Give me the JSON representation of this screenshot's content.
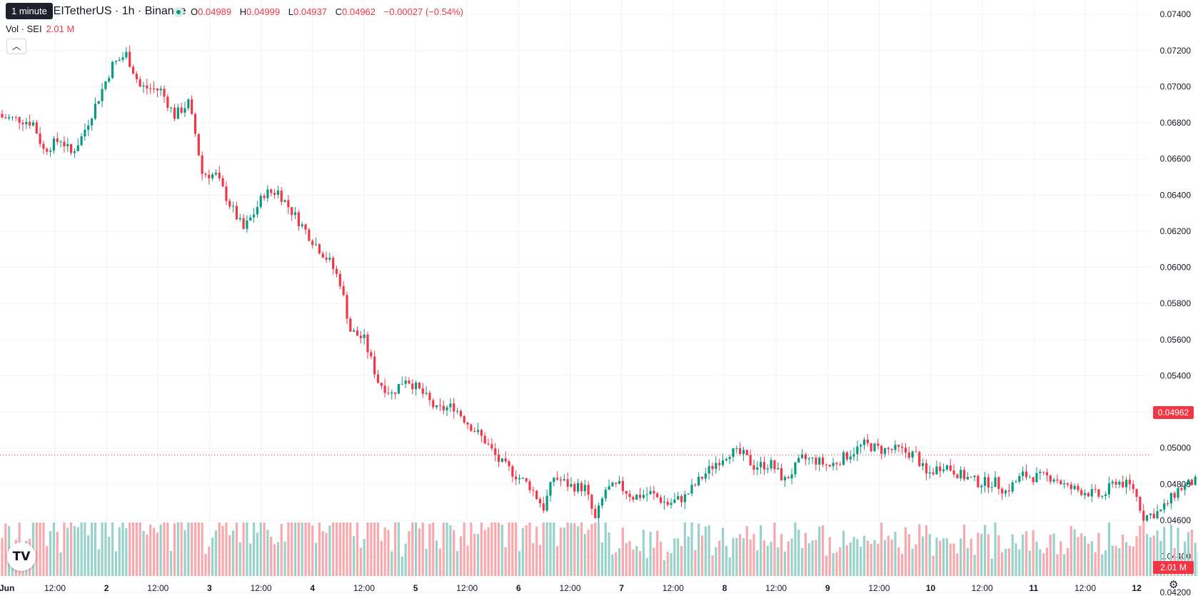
{
  "header": {
    "tooltip": "1 minute",
    "symbol": "SEITetherUS · 1h · Binance",
    "ohlc": [
      {
        "key": "O",
        "value": "0.04989"
      },
      {
        "key": "H",
        "value": "0.04999"
      },
      {
        "key": "L",
        "value": "0.04937"
      },
      {
        "key": "C",
        "value": "0.04962"
      }
    ],
    "change": "−0.00027 (−0.54%)",
    "volume_label": "Vol · SEI",
    "volume_value": "2.01 M",
    "collapse_icon": "chevron-up-icon"
  },
  "price_tag": "0.04962",
  "volume_tag": "2.01 M",
  "colors": {
    "up": "#089981",
    "down": "#f23645",
    "up_vol": "#98d2ca",
    "down_vol": "#f7a9ae",
    "grid": "#f0f3fa"
  },
  "chart_data": {
    "type": "candlestick",
    "interval": "1h",
    "ylim": [
      0.0426,
      0.0748
    ],
    "y_ticks": [
      "0.07400",
      "0.07200",
      "0.07000",
      "0.06800",
      "0.06600",
      "0.06400",
      "0.06200",
      "0.06000",
      "0.05800",
      "0.05600",
      "0.05400",
      "0.05200",
      "0.05000",
      "0.04800",
      "0.04600",
      "0.04400",
      "0.04200"
    ],
    "x_ticks": [
      "12:00",
      "2",
      "12:00",
      "3",
      "12:00",
      "4",
      "12:00",
      "5",
      "12:00",
      "6",
      "12:00",
      "7",
      "12:00",
      "8",
      "12:00",
      "9",
      "12:00",
      "10",
      "12:00",
      "11",
      "12:00",
      "12"
    ],
    "x_tick_first": "Jun",
    "last_price": 0.04962,
    "close_path": [
      [
        0,
        0.0683
      ],
      [
        5,
        0.0682
      ],
      [
        9,
        0.068
      ],
      [
        12,
        0.0665
      ],
      [
        17,
        0.0671
      ],
      [
        20,
        0.0663
      ],
      [
        23,
        0.0672
      ],
      [
        28,
        0.0694
      ],
      [
        32,
        0.0712
      ],
      [
        36,
        0.0718
      ],
      [
        40,
        0.07
      ],
      [
        46,
        0.0698
      ],
      [
        50,
        0.0684
      ],
      [
        54,
        0.0691
      ],
      [
        56,
        0.0674
      ],
      [
        58,
        0.0652
      ],
      [
        62,
        0.0651
      ],
      [
        66,
        0.0635
      ],
      [
        70,
        0.0621
      ],
      [
        73,
        0.063
      ],
      [
        76,
        0.0641
      ],
      [
        80,
        0.0642
      ],
      [
        84,
        0.0631
      ],
      [
        90,
        0.0615
      ],
      [
        95,
        0.0603
      ],
      [
        98,
        0.0592
      ],
      [
        101,
        0.0565
      ],
      [
        105,
        0.056
      ],
      [
        109,
        0.0537
      ],
      [
        113,
        0.053
      ],
      [
        117,
        0.0539
      ],
      [
        122,
        0.053
      ],
      [
        126,
        0.0521
      ],
      [
        131,
        0.0523
      ],
      [
        135,
        0.0514
      ],
      [
        140,
        0.0504
      ],
      [
        144,
        0.0493
      ],
      [
        149,
        0.0485
      ],
      [
        153,
        0.0479
      ],
      [
        157,
        0.0467
      ],
      [
        160,
        0.0484
      ],
      [
        165,
        0.0479
      ],
      [
        169,
        0.0478
      ],
      [
        172,
        0.046
      ],
      [
        175,
        0.0477
      ],
      [
        179,
        0.0479
      ],
      [
        183,
        0.0473
      ],
      [
        188,
        0.0475
      ],
      [
        193,
        0.0469
      ],
      [
        198,
        0.0473
      ],
      [
        203,
        0.0484
      ],
      [
        207,
        0.0492
      ],
      [
        211,
        0.0498
      ],
      [
        215,
        0.0496
      ],
      [
        218,
        0.049
      ],
      [
        223,
        0.0491
      ],
      [
        227,
        0.0482
      ],
      [
        232,
        0.0494
      ],
      [
        236,
        0.0493
      ],
      [
        240,
        0.049
      ],
      [
        245,
        0.0496
      ],
      [
        250,
        0.0502
      ],
      [
        255,
        0.0499
      ],
      [
        260,
        0.0499
      ],
      [
        265,
        0.0496
      ],
      [
        268,
        0.0485
      ],
      [
        273,
        0.0491
      ],
      [
        278,
        0.0485
      ],
      [
        283,
        0.0481
      ],
      [
        288,
        0.0481
      ],
      [
        291,
        0.0476
      ],
      [
        296,
        0.0485
      ],
      [
        299,
        0.0484
      ],
      [
        305,
        0.0484
      ],
      [
        309,
        0.0478
      ],
      [
        314,
        0.0476
      ],
      [
        319,
        0.0473
      ],
      [
        323,
        0.0482
      ],
      [
        328,
        0.0478
      ],
      [
        331,
        0.0462
      ],
      [
        336,
        0.0465
      ],
      [
        341,
        0.0477
      ],
      [
        345,
        0.0481
      ],
      [
        350,
        0.0482
      ],
      [
        355,
        0.0485
      ],
      [
        358,
        0.0484
      ],
      [
        362,
        0.0496
      ]
    ],
    "candle_count": 363
  }
}
